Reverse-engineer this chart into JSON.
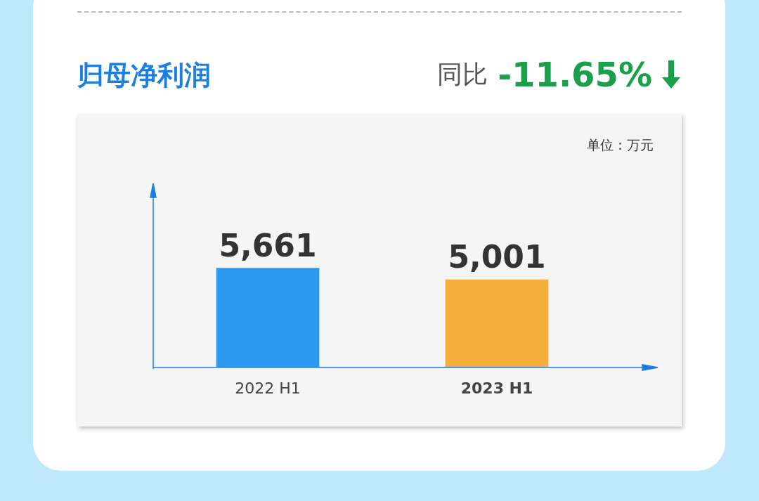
{
  "chart_data": {
    "type": "bar",
    "title": "归母净利润",
    "categories": [
      "2022 H1",
      "2023 H1"
    ],
    "values": [
      5661,
      5001
    ],
    "colors": [
      "#2b9af0",
      "#f5ae3c"
    ],
    "value_labels": [
      "5,661",
      "5,001"
    ],
    "tick_labels": "x",
    "annotations": [
      "同比 -11.65%",
      "单位：万元"
    ]
  }
}
